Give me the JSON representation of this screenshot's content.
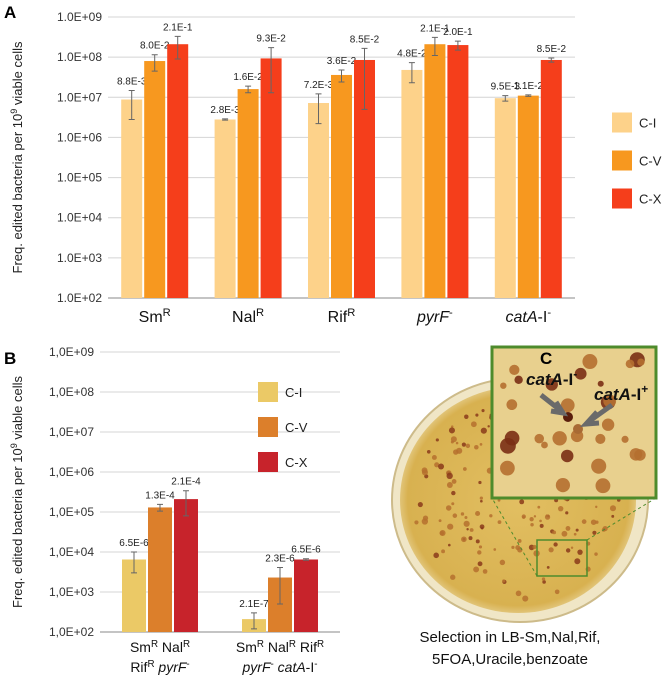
{
  "chart_data": [
    {
      "type": "bar",
      "panel_label": "A",
      "log_scale": true,
      "grid": true,
      "legend": "right",
      "ylabel": [
        {
          "text": "Freq. edited bacteria per 10"
        },
        {
          "text": "9",
          "style": "sup"
        },
        {
          "text": " viable cells"
        }
      ],
      "categories": [
        [
          [
            {
              "text": "Sm"
            },
            {
              "text": "R",
              "style": "sup"
            }
          ]
        ],
        [
          [
            {
              "text": "Nal"
            },
            {
              "text": "R",
              "style": "sup"
            }
          ]
        ],
        [
          [
            {
              "text": "Rif"
            },
            {
              "text": "R",
              "style": "sup"
            }
          ]
        ],
        [
          [
            {
              "text": "pyrF",
              "style": "italic"
            },
            {
              "text": "-",
              "style": "sup"
            }
          ]
        ],
        [
          [
            {
              "text": "catA",
              "style": "italic"
            },
            {
              "text": "-I"
            },
            {
              "text": "-",
              "style": "sup"
            }
          ]
        ]
      ],
      "ylim": [
        100,
        1000000000
      ],
      "yticks": [
        {
          "value": 100,
          "label": "1.0E+02"
        },
        {
          "value": 1000,
          "label": "1.0E+03"
        },
        {
          "value": 10000,
          "label": "1.0E+04"
        },
        {
          "value": 100000,
          "label": "1.0E+05"
        },
        {
          "value": 1000000,
          "label": "1.0E+06"
        },
        {
          "value": 10000000,
          "label": "1.0E+07"
        },
        {
          "value": 100000000,
          "label": "1.0E+08"
        },
        {
          "value": 1000000000,
          "label": "1.0E+09"
        }
      ],
      "series": [
        {
          "name": "C-I",
          "color": "#fdd28a",
          "values": [
            8800000.0,
            2800000.0,
            7200000.0,
            48000000.0,
            9500000.0
          ],
          "value_labels": [
            "8.8E-3",
            "2.8E-3",
            "7.2E-3",
            "4.8E-2",
            "9.5E-3"
          ],
          "errors": [
            6000000.0,
            100000.0,
            5000000.0,
            25000000.0,
            1500000.0
          ]
        },
        {
          "name": "C-V",
          "color": "#f7981f",
          "values": [
            80000000.0,
            16000000.0,
            36000000.0,
            210000000.0,
            11000000.0
          ],
          "value_labels": [
            "8.0E-2",
            "1.6E-2",
            "3.6E-2",
            "2.1E-1",
            "1.1E-2"
          ],
          "errors": [
            35000000.0,
            3000000.0,
            12000000.0,
            100000000.0,
            500000.0
          ]
        },
        {
          "name": "C-X",
          "color": "#f53e1b",
          "values": [
            210000000.0,
            93000000.0,
            85000000.0,
            200000000.0,
            85000000.0
          ],
          "value_labels": [
            "2.1E-1",
            "9.3E-2",
            "8.5E-2",
            "2.0E-1",
            "8.5E-2"
          ],
          "errors": [
            120000000.0,
            80000000.0,
            80000000.0,
            50000000.0,
            10000000.0
          ]
        }
      ]
    },
    {
      "type": "bar",
      "panel_label": "B",
      "log_scale": true,
      "grid": true,
      "legend": "upper-right",
      "ylabel": [
        {
          "text": "Freq. edited bacteria per 10"
        },
        {
          "text": "9",
          "style": "sup"
        },
        {
          "text": " viable cells"
        }
      ],
      "categories": [
        [
          [
            {
              "text": "Sm"
            },
            {
              "text": "R",
              "style": "sup"
            },
            {
              "text": " Nal"
            },
            {
              "text": "R",
              "style": "sup"
            }
          ],
          [
            {
              "text": "Rif"
            },
            {
              "text": "R",
              "style": "sup"
            },
            {
              "text": " "
            },
            {
              "text": "pyrF",
              "style": "italic"
            },
            {
              "text": "-",
              "style": "sup"
            }
          ]
        ],
        [
          [
            {
              "text": "Sm"
            },
            {
              "text": "R",
              "style": "sup"
            },
            {
              "text": " Nal"
            },
            {
              "text": "R",
              "style": "sup"
            },
            {
              "text": " Rif"
            },
            {
              "text": "R",
              "style": "sup"
            }
          ],
          [
            {
              "text": "pyrF",
              "style": "italic"
            },
            {
              "text": "-",
              "style": "sup"
            },
            {
              "text": " "
            },
            {
              "text": "catA",
              "style": "italic"
            },
            {
              "text": "-I"
            },
            {
              "text": "-",
              "style": "sup"
            }
          ]
        ]
      ],
      "ylim": [
        100,
        1000000000
      ],
      "yticks": [
        {
          "value": 100,
          "label": "1,0E+02"
        },
        {
          "value": 1000,
          "label": "1,0E+03"
        },
        {
          "value": 10000,
          "label": "1,0E+04"
        },
        {
          "value": 100000,
          "label": "1,0E+05"
        },
        {
          "value": 1000000,
          "label": "1,0E+06"
        },
        {
          "value": 10000000,
          "label": "1,0E+07"
        },
        {
          "value": 100000000,
          "label": "1,0E+08"
        },
        {
          "value": 1000000000,
          "label": "1,0E+09"
        }
      ],
      "series": [
        {
          "name": "C-I",
          "color": "#ebc966",
          "values": [
            6500.0,
            210.0
          ],
          "value_labels": [
            "6.5E-6",
            "2.1E-7"
          ],
          "errors": [
            3500.0,
            90
          ]
        },
        {
          "name": "C-V",
          "color": "#dc7f2b",
          "values": [
            130000.0,
            2300.0
          ],
          "value_labels": [
            "1.3E-4",
            "2.3E-6"
          ],
          "errors": [
            25000.0,
            1800.0
          ]
        },
        {
          "name": "C-X",
          "color": "#c7232b",
          "values": [
            210000.0,
            6500.0
          ],
          "value_labels": [
            "2.1E-4",
            "6.5E-6"
          ],
          "errors": [
            130000.0,
            300
          ]
        }
      ]
    }
  ],
  "panel_c": {
    "panel_label": "C",
    "annotations": [
      [
        {
          "text": "catA",
          "style": "italic"
        },
        {
          "text": "-I"
        },
        {
          "text": "-",
          "style": "sup"
        }
      ],
      [
        {
          "text": "catA",
          "style": "italic"
        },
        {
          "text": "-I"
        },
        {
          "text": "+",
          "style": "sup"
        }
      ]
    ],
    "caption": [
      "Selection in LB-Sm,Nal,Rif,",
      "5FOA,Uracile,benzoate"
    ]
  }
}
